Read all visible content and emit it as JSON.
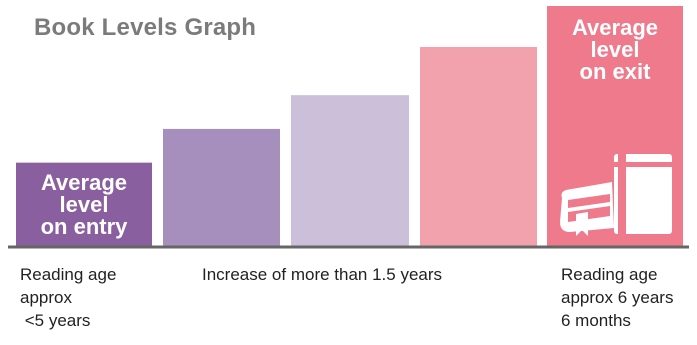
{
  "title": "Book Levels Graph",
  "chart_data": {
    "type": "bar",
    "title": "Book Levels Graph",
    "xlabel": "",
    "ylabel": "",
    "ylim": [
      0,
      100
    ],
    "categories": [
      "Average level on entry",
      "",
      "",
      "",
      "Average level on exit"
    ],
    "values": [
      35,
      49,
      63,
      83,
      100
    ],
    "colors": [
      "#8a5fa0",
      "#a68fbd",
      "#cbbfda",
      "#f2a2ad",
      "#ee7a8c"
    ],
    "bar_labels": [
      "Average\nlevel\non entry",
      "",
      "",
      "",
      "Average\nlevel\non exit"
    ],
    "grid": false
  },
  "labels": {
    "entry": "Average\nlevel\non entry",
    "exit": "Average\nlevel\non exit"
  },
  "captions": {
    "left": "Reading age\napprox\n <5 years",
    "middle": "Increase of more than 1.5 years",
    "right": "Reading age\napprox 6 years\n6 months"
  },
  "icons": {
    "exit_bar": "book-icon"
  },
  "colors": {
    "title": "#7b7b7b",
    "baseline": "#666666"
  }
}
